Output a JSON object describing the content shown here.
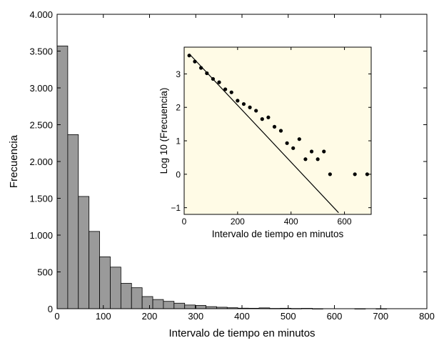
{
  "chart_data": [
    {
      "type": "bar",
      "xlabel": "Intervalo de tiempo en minutos",
      "ylabel": "Frecuencia",
      "xlim": [
        0,
        800
      ],
      "ylim": [
        0,
        4000
      ],
      "xticks": [
        0,
        100,
        200,
        300,
        400,
        500,
        600,
        700,
        800
      ],
      "xtick_labels": [
        "0",
        "100",
        "200",
        "300",
        "400",
        "500",
        "600",
        "700",
        "800"
      ],
      "yticks": [
        0,
        500,
        1000,
        1500,
        2000,
        2500,
        3000,
        3500,
        4000
      ],
      "ytick_labels": [
        "0",
        "500",
        "1.000",
        "1.500",
        "2.000",
        "2.500",
        "3.000",
        "3.500",
        "4.000"
      ],
      "bin_width": 23,
      "bins": [
        {
          "x": 11.5,
          "value": 3570
        },
        {
          "x": 34.5,
          "value": 2365
        },
        {
          "x": 57.5,
          "value": 1525
        },
        {
          "x": 80.5,
          "value": 1050
        },
        {
          "x": 103.5,
          "value": 705
        },
        {
          "x": 126.5,
          "value": 565
        },
        {
          "x": 149.5,
          "value": 345
        },
        {
          "x": 172.5,
          "value": 285
        },
        {
          "x": 195.5,
          "value": 165
        },
        {
          "x": 218.5,
          "value": 125
        },
        {
          "x": 241.5,
          "value": 100
        },
        {
          "x": 264.5,
          "value": 75
        },
        {
          "x": 287.5,
          "value": 50
        },
        {
          "x": 310.5,
          "value": 45
        },
        {
          "x": 333.5,
          "value": 28
        },
        {
          "x": 356.5,
          "value": 20
        },
        {
          "x": 379.5,
          "value": 13
        },
        {
          "x": 402.5,
          "value": 7
        },
        {
          "x": 425.5,
          "value": 6
        },
        {
          "x": 448.5,
          "value": 11
        },
        {
          "x": 471.5,
          "value": 4
        },
        {
          "x": 494.5,
          "value": 6
        },
        {
          "x": 517.5,
          "value": 3
        },
        {
          "x": 540.5,
          "value": 5
        },
        {
          "x": 563.5,
          "value": 1
        },
        {
          "x": 655.5,
          "value": 1
        },
        {
          "x": 701.5,
          "value": 1
        }
      ],
      "bar_color": "#9a9a9a",
      "edge_color": "#000000",
      "grid": false
    },
    {
      "type": "scatter",
      "xlabel": "Intervalo de tiempo en minutos",
      "ylabel": "Log 10 (Frecuencia)",
      "xlim": [
        0,
        700
      ],
      "ylim": [
        -1.2,
        3.8
      ],
      "xticks": [
        0,
        200,
        400,
        600
      ],
      "xtick_labels": [
        "0",
        "200",
        "400",
        "600"
      ],
      "yticks": [
        -1,
        0,
        1,
        2,
        3
      ],
      "ytick_labels": [
        "−1",
        "0",
        "1",
        "2",
        "3"
      ],
      "background": "#fffbe6",
      "points": [
        [
          19,
          3.55
        ],
        [
          40,
          3.37
        ],
        [
          63,
          3.18
        ],
        [
          85,
          3.02
        ],
        [
          108,
          2.85
        ],
        [
          131,
          2.75
        ],
        [
          154,
          2.54
        ],
        [
          177,
          2.45
        ],
        [
          200,
          2.2
        ],
        [
          223,
          2.1
        ],
        [
          246,
          2.0
        ],
        [
          269,
          1.9
        ],
        [
          292,
          1.65
        ],
        [
          315,
          1.7
        ],
        [
          338,
          1.42
        ],
        [
          362,
          1.3
        ],
        [
          385,
          0.93
        ],
        [
          408,
          0.78
        ],
        [
          431,
          1.05
        ],
        [
          454,
          0.45
        ],
        [
          477,
          0.68
        ],
        [
          500,
          0.45
        ],
        [
          523,
          0.68
        ],
        [
          546,
          0.0
        ],
        [
          639,
          0.0
        ],
        [
          685,
          0.0
        ]
      ],
      "fit_line": {
        "x": [
          19,
          578
        ],
        "y": [
          3.6,
          -1.15
        ]
      },
      "grid": false
    }
  ]
}
